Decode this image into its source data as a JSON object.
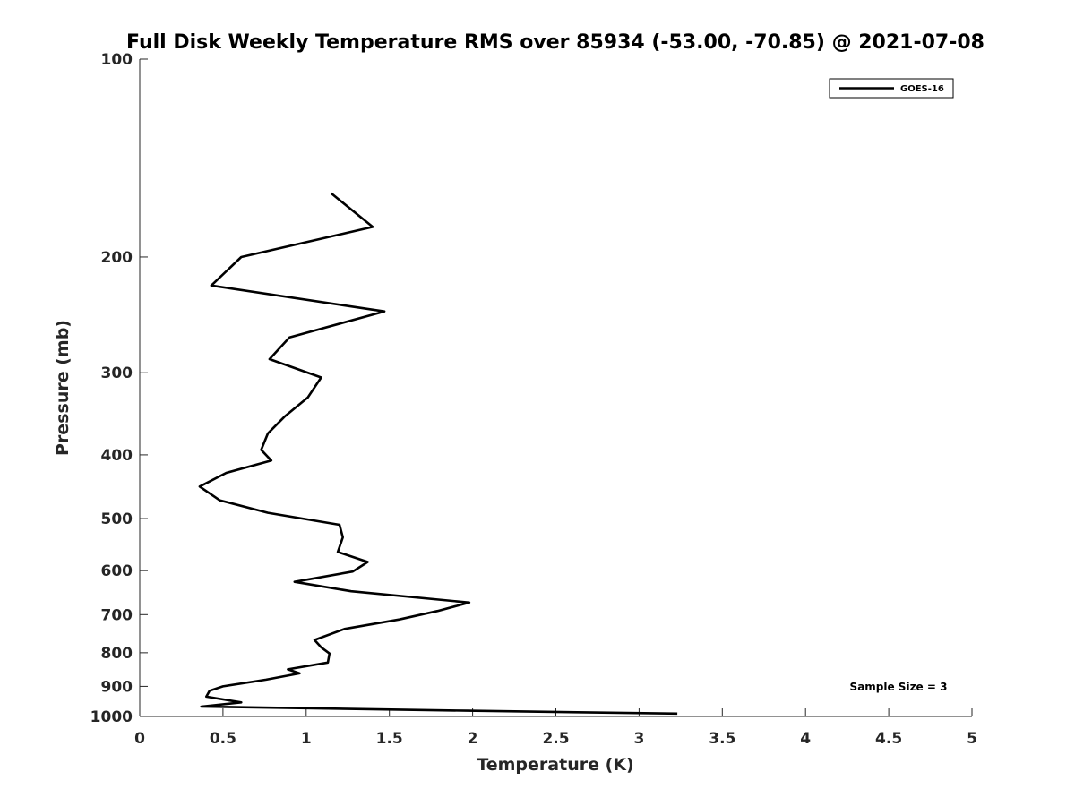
{
  "chart_data": {
    "type": "line",
    "title": "Full Disk Weekly Temperature RMS over 85934 (-53.00, -70.85) @ 2021-07-08",
    "xlabel": "Temperature (K)",
    "ylabel": "Pressure (mb)",
    "xlim": [
      0,
      5
    ],
    "ylim": [
      100,
      1000
    ],
    "y_scale": "log",
    "y_reversed": true,
    "x_ticks": [
      0,
      0.5,
      1,
      1.5,
      2,
      2.5,
      3,
      3.5,
      4,
      4.5,
      5
    ],
    "x_tick_labels": [
      "0",
      "0.5",
      "1",
      "1.5",
      "2",
      "2.5",
      "3",
      "3.5",
      "4",
      "4.5",
      "5"
    ],
    "y_ticks": [
      100,
      200,
      300,
      400,
      500,
      600,
      700,
      800,
      900,
      1000
    ],
    "y_tick_labels": [
      "100",
      "200",
      "300",
      "400",
      "500",
      "600",
      "700",
      "800",
      "900",
      "1000"
    ],
    "grid": false,
    "legend_position": "top-right",
    "annotation": "Sample Size = 3",
    "series": [
      {
        "name": "GOES-16",
        "color": "#000000",
        "points": [
          [
            1.15,
            160
          ],
          [
            1.4,
            180
          ],
          [
            0.61,
            200
          ],
          [
            0.43,
            221
          ],
          [
            1.47,
            242
          ],
          [
            0.9,
            265
          ],
          [
            0.78,
            286
          ],
          [
            1.09,
            305
          ],
          [
            1.01,
            327
          ],
          [
            0.87,
            350
          ],
          [
            0.77,
            371
          ],
          [
            0.73,
            393
          ],
          [
            0.79,
            408
          ],
          [
            0.52,
            426
          ],
          [
            0.36,
            447
          ],
          [
            0.48,
            469
          ],
          [
            0.77,
            490
          ],
          [
            1.2,
            511
          ],
          [
            1.22,
            534
          ],
          [
            1.19,
            562
          ],
          [
            1.37,
            582
          ],
          [
            1.28,
            602
          ],
          [
            0.93,
            624
          ],
          [
            1.27,
            645
          ],
          [
            1.98,
            671
          ],
          [
            1.79,
            691
          ],
          [
            1.56,
            712
          ],
          [
            1.23,
            736
          ],
          [
            1.05,
            765
          ],
          [
            1.09,
            785
          ],
          [
            1.14,
            802
          ],
          [
            1.13,
            828
          ],
          [
            0.89,
            848
          ],
          [
            0.96,
            860
          ],
          [
            0.76,
            879
          ],
          [
            0.5,
            900
          ],
          [
            0.42,
            914
          ],
          [
            0.4,
            933
          ],
          [
            0.61,
            952
          ],
          [
            0.37,
            966
          ],
          [
            1.97,
            980
          ],
          [
            3.23,
            990
          ]
        ]
      }
    ]
  }
}
